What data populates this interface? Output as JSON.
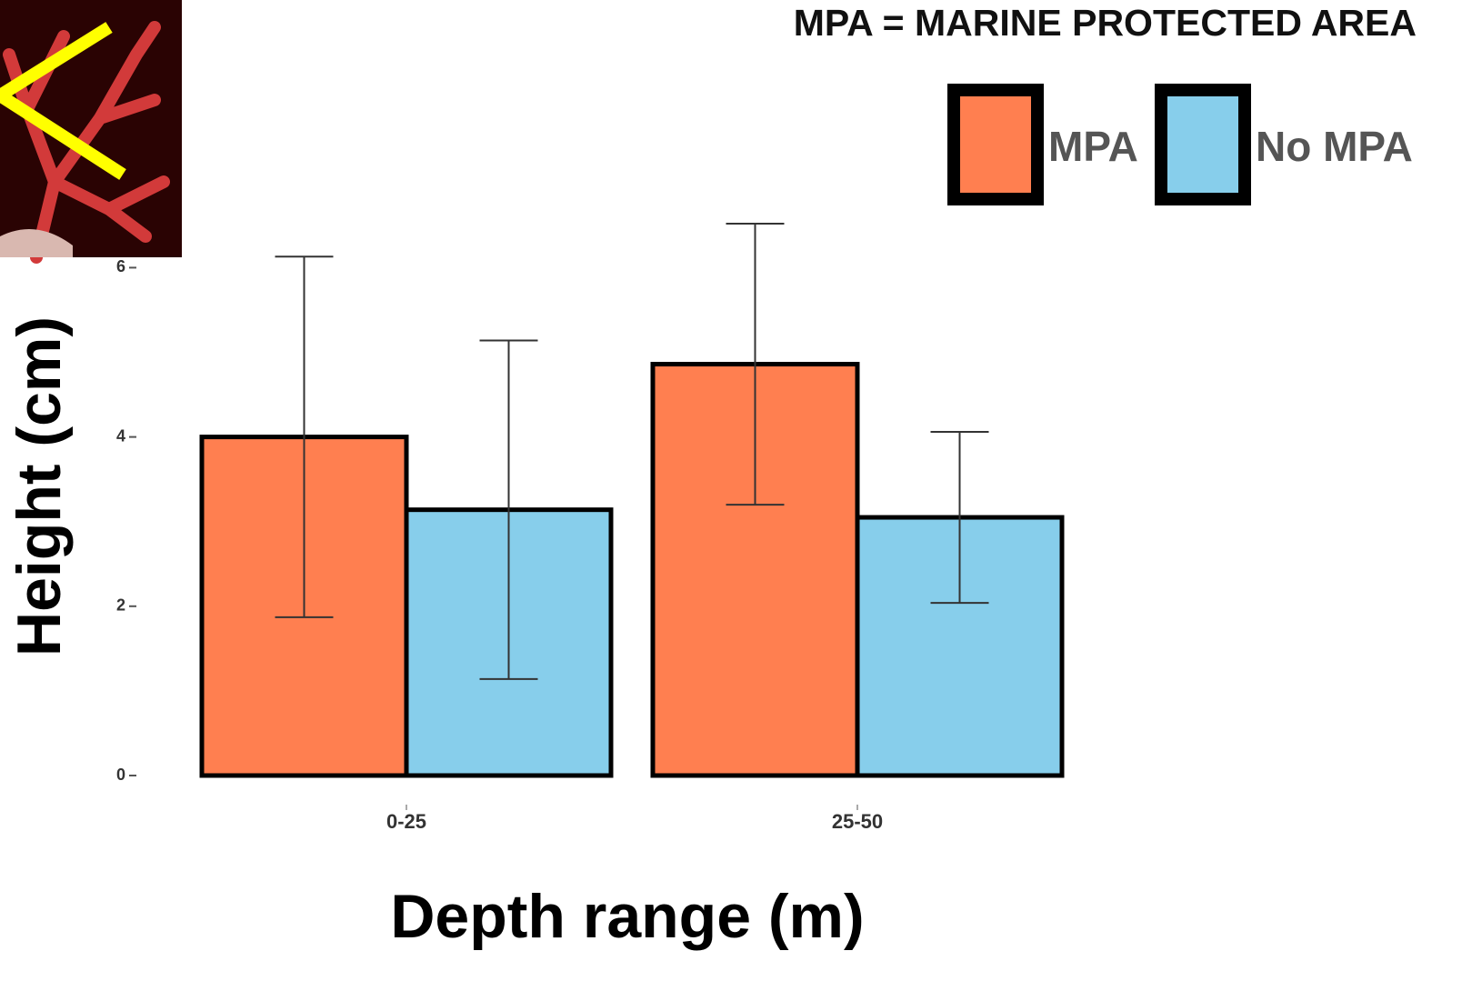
{
  "chart_data": {
    "type": "bar",
    "title": "MPA = MARINE PROTECTED AREA",
    "x_label": "Depth range (m)",
    "y_label": "Height (cm)",
    "categories": [
      "0-25",
      "25-50"
    ],
    "series": [
      {
        "name": "MPA",
        "color": "#ff7f50",
        "values": [
          4.0,
          4.86
        ],
        "errors": [
          2.13,
          1.66
        ]
      },
      {
        "name": "No MPA",
        "color": "#87ceeb",
        "values": [
          3.14,
          3.05
        ],
        "errors": [
          2.0,
          1.01
        ]
      }
    ],
    "ylim": [
      0,
      6.6
    ],
    "yticks": [
      0,
      2,
      4,
      6
    ],
    "grid": false,
    "legend": "upper right"
  }
}
